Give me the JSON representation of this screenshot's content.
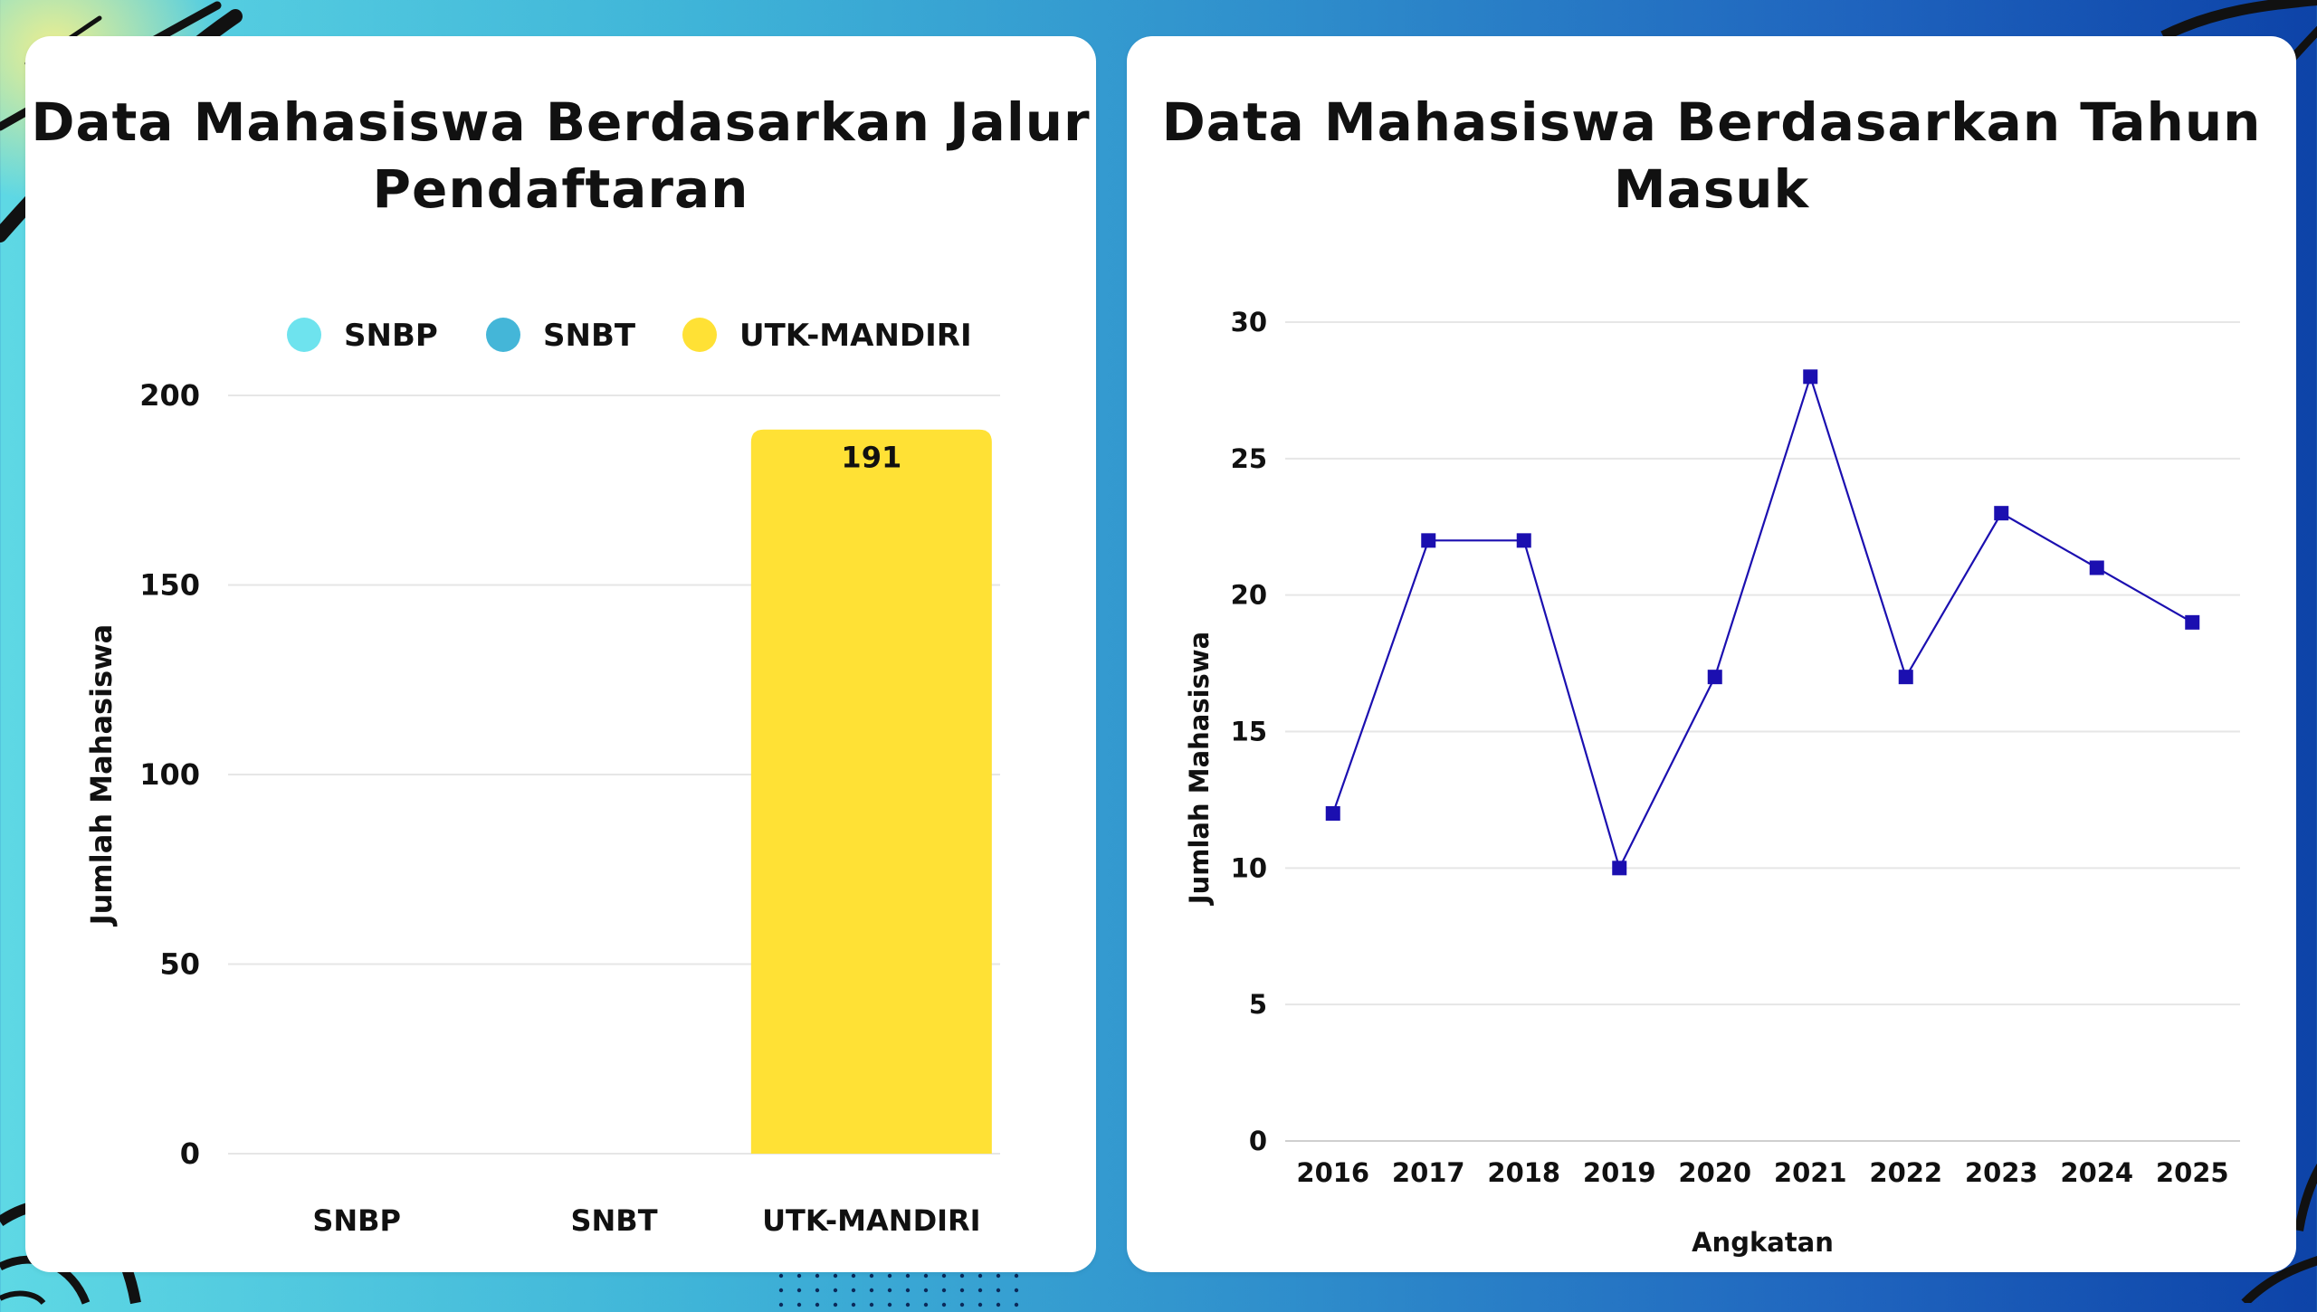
{
  "charts": [
    {
      "type": "bar",
      "title_lines": [
        "Data Mahasiswa Berdasarkan Jalur",
        "Pendaftaran"
      ],
      "categories": [
        "SNBP",
        "SNBT",
        "UTK-MANDIRI"
      ],
      "series": [
        {
          "name": "SNBP",
          "color": "#6ee3ee"
        },
        {
          "name": "SNBT",
          "color": "#44b6d8"
        },
        {
          "name": "UTK-MANDIRI",
          "color": "#ffe135"
        }
      ],
      "values": [
        0,
        0,
        191
      ],
      "data_labels": [
        "",
        "",
        "191"
      ],
      "ylabel": "Jumlah Mahasiswa",
      "xlabel": "",
      "ylim": [
        0,
        200
      ],
      "yticks": [
        "0",
        "50",
        "100",
        "150",
        "200"
      ],
      "grid": true,
      "legend_position": "top"
    },
    {
      "type": "line",
      "title_lines": [
        "Data Mahasiswa Berdasarkan Tahun",
        "Masuk"
      ],
      "x": [
        "2016",
        "2017",
        "2018",
        "2019",
        "2020",
        "2021",
        "2022",
        "2023",
        "2024",
        "2025"
      ],
      "values": [
        12,
        22,
        22,
        10,
        17,
        28,
        17,
        23,
        21,
        19
      ],
      "color": "#1b0fb0",
      "ylabel": "Jumlah Mahasiswa",
      "xlabel": "Angkatan",
      "ylim": [
        0,
        30
      ],
      "yticks": [
        "0",
        "5",
        "10",
        "15",
        "20",
        "25",
        "30"
      ],
      "grid": true,
      "marker": "square"
    }
  ],
  "chart_data": [
    {
      "type": "bar",
      "title": "Data Mahasiswa Berdasarkan Jalur Pendaftaran",
      "categories": [
        "SNBP",
        "SNBT",
        "UTK-MANDIRI"
      ],
      "values": [
        0,
        0,
        191
      ],
      "ylabel": "Jumlah Mahasiswa",
      "ylim": [
        0,
        200
      ],
      "legend": [
        "SNBP",
        "SNBT",
        "UTK-MANDIRI"
      ]
    },
    {
      "type": "line",
      "title": "Data Mahasiswa Berdasarkan Tahun Masuk",
      "x": [
        2016,
        2017,
        2018,
        2019,
        2020,
        2021,
        2022,
        2023,
        2024,
        2025
      ],
      "values": [
        12,
        22,
        22,
        10,
        17,
        28,
        17,
        23,
        21,
        19
      ],
      "xlabel": "Angkatan",
      "ylabel": "Jumlah Mahasiswa",
      "ylim": [
        0,
        30
      ]
    }
  ]
}
